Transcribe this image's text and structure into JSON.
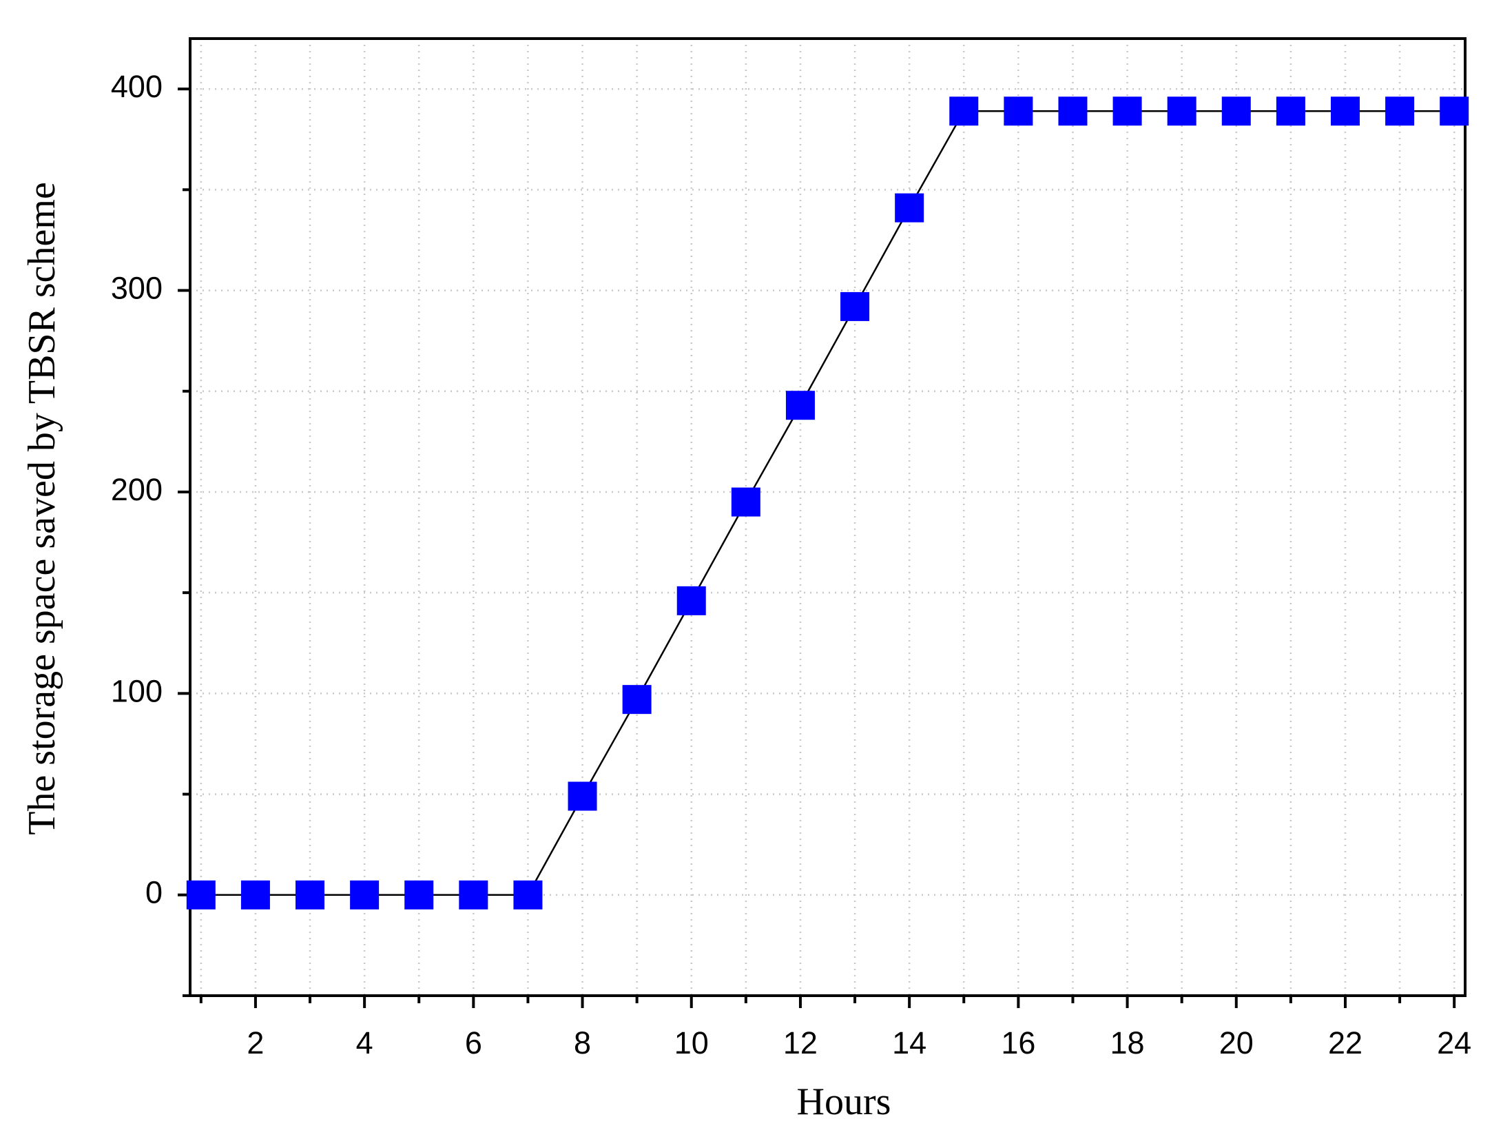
{
  "chart_data": {
    "type": "line",
    "xlabel": "Hours",
    "ylabel": "The storage space saved by TBSR scheme",
    "x": [
      1,
      2,
      3,
      4,
      5,
      6,
      7,
      8,
      9,
      10,
      11,
      12,
      13,
      14,
      15,
      16,
      17,
      18,
      19,
      20,
      21,
      22,
      23,
      24
    ],
    "series": [
      {
        "name": "TBSR",
        "color": "#0000ff",
        "values": [
          0,
          0,
          0,
          0,
          0,
          0,
          0,
          49,
          97,
          146,
          195,
          243,
          292,
          341,
          389,
          389,
          389,
          389,
          389,
          389,
          389,
          389,
          389,
          389
        ]
      }
    ],
    "xlim": [
      0.8,
      24.2
    ],
    "ylim": [
      -50,
      425
    ],
    "xticks": [
      2,
      4,
      6,
      8,
      10,
      12,
      14,
      16,
      18,
      20,
      22,
      24
    ],
    "xminor_ticks": [
      1,
      3,
      5,
      7,
      9,
      11,
      13,
      15,
      17,
      19,
      21,
      23
    ],
    "yticks": [
      0,
      100,
      200,
      300,
      400
    ],
    "yminor_ticks": [
      -50,
      50,
      150,
      250,
      350
    ],
    "grid": true,
    "marker": "square"
  }
}
